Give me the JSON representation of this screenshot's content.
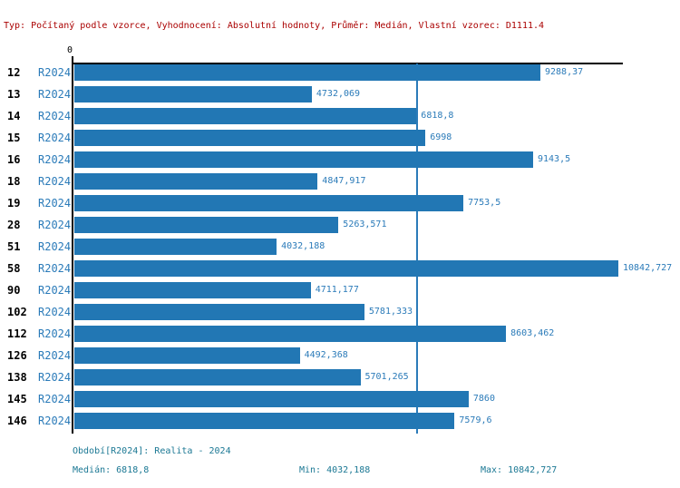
{
  "header": {
    "info_line": "Typ: Počítaný podle vzorce, Vyhodnocení: Absolutní hodnoty, Průměr: Medián, Vlastní vzorec: D1111.4"
  },
  "colors": {
    "bar_blue": "#2277b4",
    "label_blue": "#2b7bb9",
    "footer_teal": "#1b7894",
    "info_red": "#aa0000",
    "axis_black": "#000000"
  },
  "chart_data": {
    "type": "bar",
    "orientation": "horizontal",
    "title": "",
    "xlabel": "",
    "ylabel": "",
    "origin_label": "0",
    "axis_max": 10842.727,
    "median_line_value": 6818.8,
    "series_label": "R2024",
    "categories": [
      "12",
      "13",
      "14",
      "15",
      "16",
      "18",
      "19",
      "28",
      "51",
      "58",
      "90",
      "102",
      "112",
      "126",
      "138",
      "145",
      "146"
    ],
    "values": [
      9288.37,
      4732.069,
      6818.8,
      6998,
      9143.5,
      4847.917,
      7753.5,
      5263.571,
      4032.188,
      10842.727,
      4711.177,
      5781.333,
      8603.462,
      4492.368,
      5701.265,
      7860,
      7579.6
    ],
    "rows": [
      {
        "id": "12",
        "series": "R2024",
        "value": 9288.37,
        "label": "9288,37"
      },
      {
        "id": "13",
        "series": "R2024",
        "value": 4732.069,
        "label": "4732,069"
      },
      {
        "id": "14",
        "series": "R2024",
        "value": 6818.8,
        "label": "6818,8"
      },
      {
        "id": "15",
        "series": "R2024",
        "value": 6998,
        "label": "6998"
      },
      {
        "id": "16",
        "series": "R2024",
        "value": 9143.5,
        "label": "9143,5"
      },
      {
        "id": "18",
        "series": "R2024",
        "value": 4847.917,
        "label": "4847,917"
      },
      {
        "id": "19",
        "series": "R2024",
        "value": 7753.5,
        "label": "7753,5"
      },
      {
        "id": "28",
        "series": "R2024",
        "value": 5263.571,
        "label": "5263,571"
      },
      {
        "id": "51",
        "series": "R2024",
        "value": 4032.188,
        "label": "4032,188"
      },
      {
        "id": "58",
        "series": "R2024",
        "value": 10842.727,
        "label": "10842,727"
      },
      {
        "id": "90",
        "series": "R2024",
        "value": 4711.177,
        "label": "4711,177"
      },
      {
        "id": "102",
        "series": "R2024",
        "value": 5781.333,
        "label": "5781,333"
      },
      {
        "id": "112",
        "series": "R2024",
        "value": 8603.462,
        "label": "8603,462"
      },
      {
        "id": "126",
        "series": "R2024",
        "value": 4492.368,
        "label": "4492,368"
      },
      {
        "id": "138",
        "series": "R2024",
        "value": 5701.265,
        "label": "5701,265"
      },
      {
        "id": "145",
        "series": "R2024",
        "value": 7860,
        "label": "7860"
      },
      {
        "id": "146",
        "series": "R2024",
        "value": 7579.6,
        "label": "7579,6"
      }
    ]
  },
  "footer": {
    "period_line": "Období[R2024]: Realita - 2024",
    "median_label": "Medián: 6818,8",
    "min_label": "Min: 4032,188",
    "max_label": "Max: 10842,727"
  }
}
